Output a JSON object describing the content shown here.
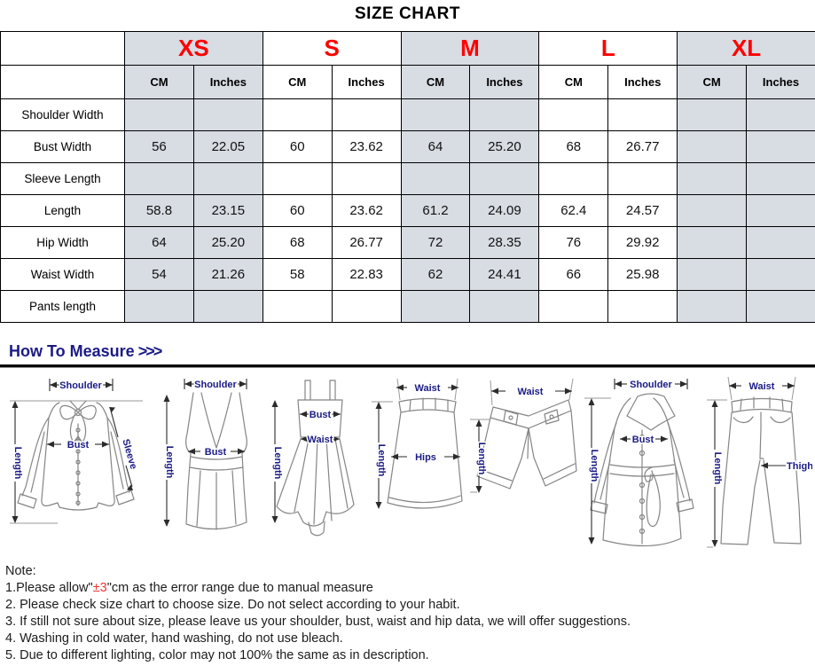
{
  "title": "SIZE CHART",
  "colors": {
    "accent_red": "#fe0000",
    "navy": "#1b1b85",
    "shade": "#d8dce3",
    "border": "#000000"
  },
  "size_table": {
    "sizes": [
      "XS",
      "S",
      "M",
      "L",
      "XL"
    ],
    "units": [
      "CM",
      "Inches"
    ],
    "rows": [
      {
        "label": "Shoulder Width",
        "values": [
          "",
          "",
          "",
          "",
          "",
          "",
          "",
          "",
          "",
          ""
        ]
      },
      {
        "label": "Bust Width",
        "values": [
          "56",
          "22.05",
          "60",
          "23.62",
          "64",
          "25.20",
          "68",
          "26.77",
          "",
          ""
        ]
      },
      {
        "label": "Sleeve Length",
        "values": [
          "",
          "",
          "",
          "",
          "",
          "",
          "",
          "",
          "",
          ""
        ]
      },
      {
        "label": "Length",
        "values": [
          "58.8",
          "23.15",
          "60",
          "23.62",
          "61.2",
          "24.09",
          "62.4",
          "24.57",
          "",
          ""
        ]
      },
      {
        "label": "Hip Width",
        "values": [
          "64",
          "25.20",
          "68",
          "26.77",
          "72",
          "28.35",
          "76",
          "29.92",
          "",
          ""
        ]
      },
      {
        "label": "Waist Width",
        "values": [
          "54",
          "21.26",
          "58",
          "22.83",
          "62",
          "24.41",
          "66",
          "25.98",
          "",
          ""
        ]
      },
      {
        "label": "Pants length",
        "values": [
          "",
          "",
          "",
          "",
          "",
          "",
          "",
          "",
          "",
          ""
        ]
      }
    ]
  },
  "measure": {
    "heading": "How To Measure",
    "arrows": ">>>",
    "figures": [
      {
        "name": "blouse",
        "labels": {
          "shoulder": "Shoulder",
          "bust": "Bust",
          "sleeve": "Sleeve",
          "length": "Length"
        }
      },
      {
        "name": "tank-top",
        "labels": {
          "shoulder": "Shoulder",
          "bust": "Bust",
          "length": "Length"
        }
      },
      {
        "name": "dress",
        "labels": {
          "bust": "Bust",
          "waist": "Waist",
          "length": "Length"
        }
      },
      {
        "name": "skirt",
        "labels": {
          "waist": "Waist",
          "hips": "Hips",
          "length": "Length"
        }
      },
      {
        "name": "shorts",
        "labels": {
          "waist": "Waist",
          "length": "Length"
        }
      },
      {
        "name": "coat",
        "labels": {
          "shoulder": "Shoulder",
          "bust": "Bust",
          "length": "Length"
        }
      },
      {
        "name": "pants",
        "labels": {
          "waist": "Waist",
          "thigh": "Thigh",
          "length": "Length"
        }
      }
    ]
  },
  "notes": {
    "title": "Note:",
    "line1_prefix": "1.Please allow\"",
    "line1_highlight": "±3",
    "line1_suffix": "\"cm as the error range due to manual measure",
    "items": [
      "2. Please check size chart to choose size. Do not select according to your habit.",
      "3. If still not sure about size, please leave us your shoulder, bust, waist and hip data, we will offer suggestions.",
      "4. Washing in cold water, hand washing, do not use bleach.",
      "5. Due to different lighting, color may not 100% the same as in description."
    ]
  }
}
